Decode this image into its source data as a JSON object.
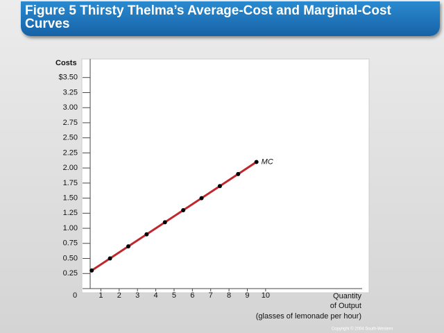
{
  "chart_data": {
    "type": "line",
    "title": "Figure 5 Thirsty Thelma’s Average-Cost and Marginal-Cost Curves",
    "y_label": "Costs",
    "x_label": [
      "Quantity",
      "of Output",
      "(glasses of lemonade per hour)"
    ],
    "copyright": "Copyright © 2004 South-Western",
    "x": [
      0.5,
      1.5,
      2.5,
      3.5,
      4.5,
      5.5,
      6.5,
      7.5,
      8.5,
      9.5
    ],
    "series": [
      {
        "name": "MC",
        "color": "#c0272d",
        "values": [
          0.3,
          0.5,
          0.7,
          0.9,
          1.1,
          1.3,
          1.5,
          1.7,
          1.9,
          2.1
        ]
      }
    ],
    "xlim": [
      0,
      15.5
    ],
    "ylim": [
      0,
      3.75
    ],
    "xticks": [
      0,
      1,
      2,
      3,
      4,
      5,
      6,
      7,
      8,
      9,
      10
    ],
    "yticks": [
      {
        "value": 0.25,
        "label": "0.25"
      },
      {
        "value": 0.5,
        "label": "0.50"
      },
      {
        "value": 0.75,
        "label": "0.75"
      },
      {
        "value": 1,
        "label": "1.00"
      },
      {
        "value": 1.25,
        "label": "1.25"
      },
      {
        "value": 1.5,
        "label": "1.50"
      },
      {
        "value": 1.75,
        "label": "1.75"
      },
      {
        "value": 2,
        "label": "2.00"
      },
      {
        "value": 2.25,
        "label": "2.25"
      },
      {
        "value": 2.5,
        "label": "2.50"
      },
      {
        "value": 2.75,
        "label": "2.75"
      },
      {
        "value": 3,
        "label": "3.00"
      },
      {
        "value": 3.25,
        "label": "3.25"
      },
      {
        "value": 3.5,
        "label": "$3.50"
      }
    ]
  }
}
